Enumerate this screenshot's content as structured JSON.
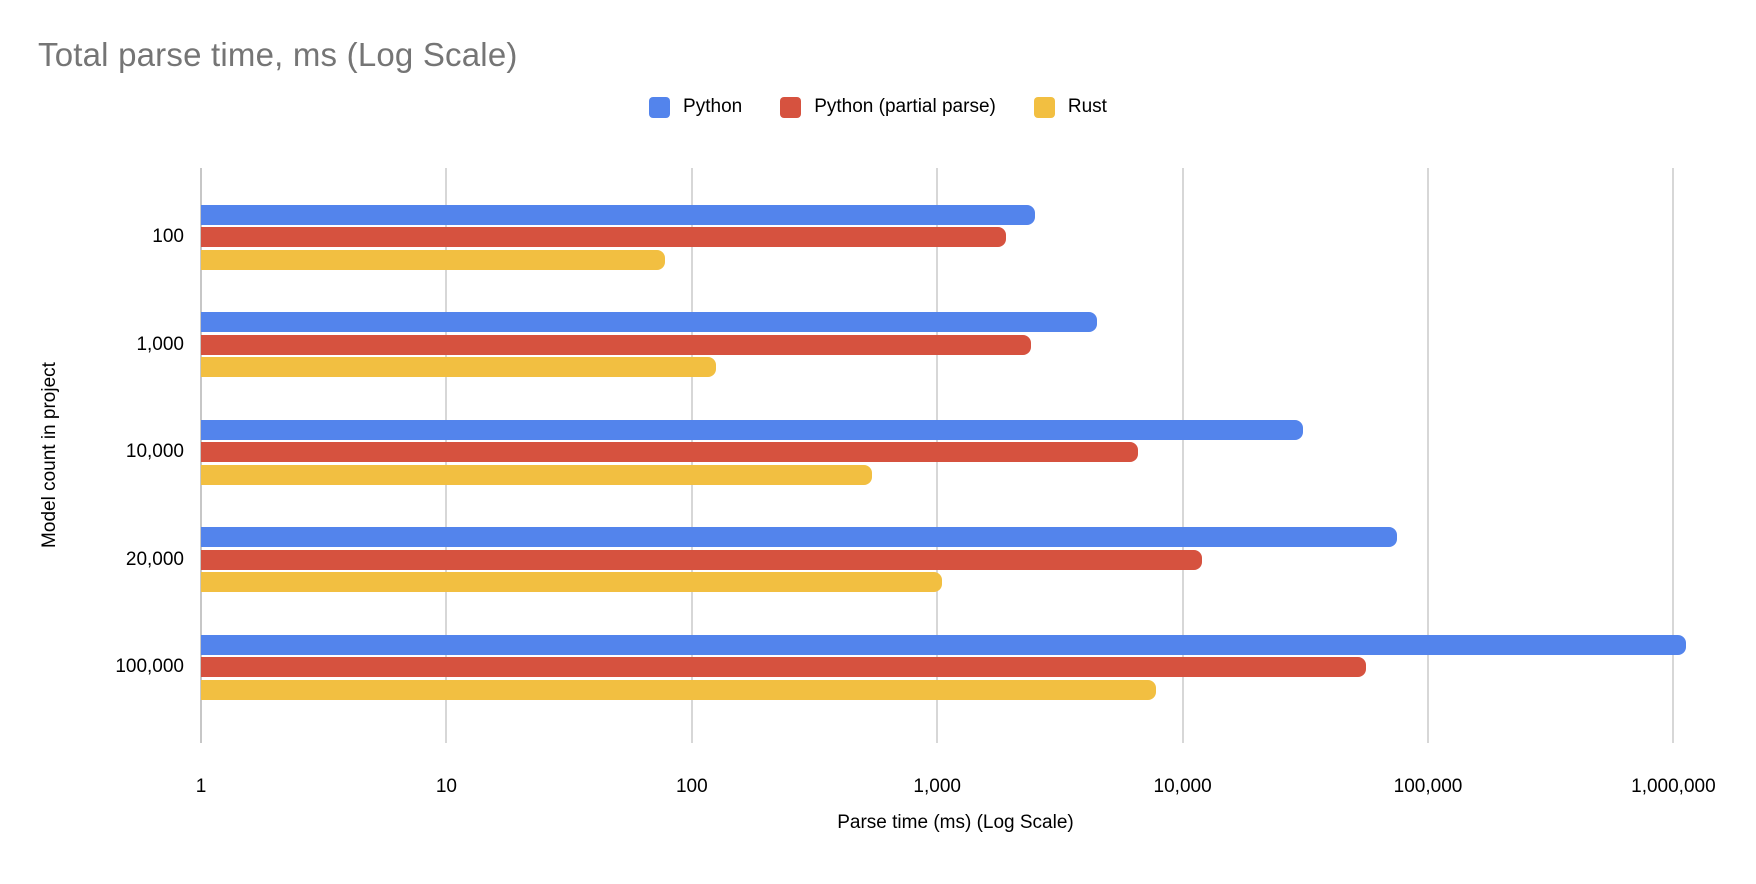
{
  "chart_data": {
    "type": "bar",
    "orientation": "horizontal",
    "title": "Total parse time, ms (Log Scale)",
    "xlabel": "Parse time (ms) (Log Scale)",
    "ylabel": "Model count in project",
    "x_scale": "log",
    "x_range": [
      1,
      1000000
    ],
    "x_ticks": [
      "1",
      "10",
      "100",
      "1,000",
      "10,000",
      "100,000",
      "1,000,000"
    ],
    "categories": [
      "100",
      "1,000",
      "10,000",
      "20,000",
      "100,000"
    ],
    "series": [
      {
        "name": "Python",
        "color": "#5384EC",
        "values": [
          2500,
          4500,
          31000,
          75000,
          1130000
        ]
      },
      {
        "name": "Python (partial parse)",
        "color": "#D6523F",
        "values": [
          1900,
          2400,
          6600,
          12000,
          56000
        ]
      },
      {
        "name": "Rust",
        "color": "#F2BF41",
        "values": [
          78,
          125,
          540,
          1050,
          7800
        ]
      }
    ],
    "grid": "vertical-decades",
    "legend_position": "top-center"
  },
  "colors": {
    "background": "#FFFFFF",
    "title_text": "#757575",
    "axis_text": "#000000",
    "gridline": "#D7D7D7",
    "baseline": "#C7C7C7"
  }
}
